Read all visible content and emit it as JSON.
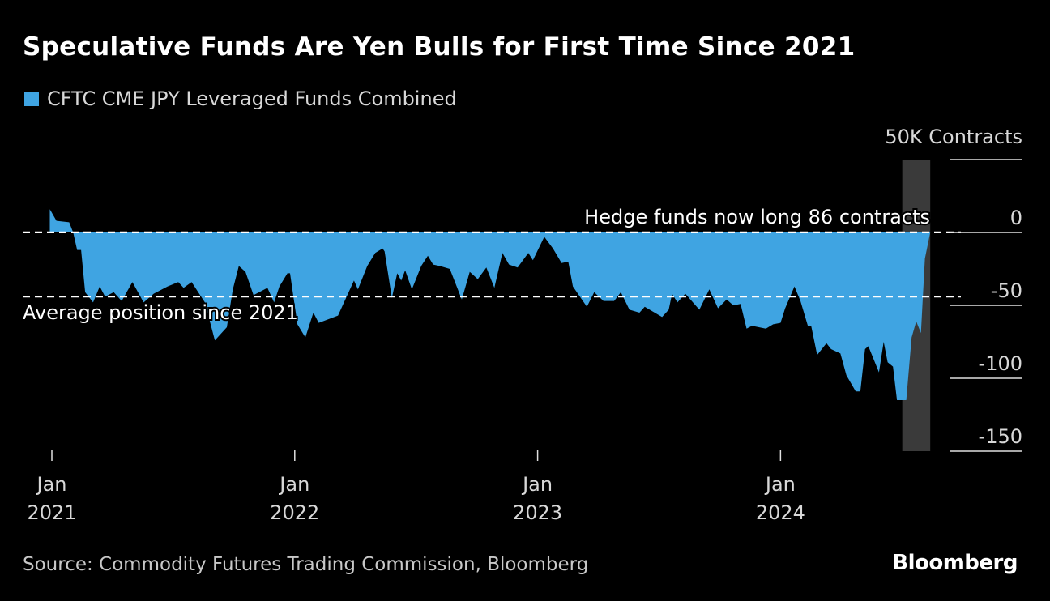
{
  "title": "Speculative Funds Are Yen Bulls for First Time Since 2021",
  "source": "Source: Commodity Futures Trading Commission, Bloomberg",
  "logo": "Bloomberg",
  "colors": {
    "series": "#3fa4e2",
    "highlight_band": "#3a3a3a",
    "background": "#000000"
  },
  "chart_data": {
    "type": "area",
    "title": "Speculative Funds Are Yen Bulls for First Time Since 2021",
    "ylabel": "50K Contracts",
    "ylim": [
      -150,
      50
    ],
    "yticks": [
      {
        "value": 50,
        "label": ""
      },
      {
        "value": 0,
        "label": "0"
      },
      {
        "value": -50,
        "label": "-50"
      },
      {
        "value": -100,
        "label": "-100"
      },
      {
        "value": -150,
        "label": "-150"
      }
    ],
    "xticks": [
      {
        "date": "2021-01-01",
        "month": "Jan",
        "year": "2021"
      },
      {
        "date": "2022-01-01",
        "month": "Jan",
        "year": "2022"
      },
      {
        "date": "2023-01-01",
        "month": "Jan",
        "year": "2023"
      },
      {
        "date": "2024-01-01",
        "month": "Jan",
        "year": "2024"
      }
    ],
    "grid": false,
    "legend": {
      "position": "top-left",
      "entries": [
        "CFTC CME JPY Leveraged Funds Combined"
      ]
    },
    "highlight_band": {
      "start": "2024-07-02",
      "end": "2024-08-13"
    },
    "reference_lines": [
      {
        "value": 0.086,
        "label": "Hedge funds now long 86 contracts"
      },
      {
        "value": -44,
        "label": "Average position since 2021"
      }
    ],
    "series": [
      {
        "name": "CFTC CME JPY Leveraged Funds Combined",
        "points": [
          [
            "2020-12-29",
            16
          ],
          [
            "2021-01-08",
            8
          ],
          [
            "2021-01-27",
            7
          ],
          [
            "2021-02-02",
            0
          ],
          [
            "2021-02-08",
            -12
          ],
          [
            "2021-02-14",
            -12
          ],
          [
            "2021-02-20",
            -41
          ],
          [
            "2021-03-04",
            -48
          ],
          [
            "2021-03-14",
            -37
          ],
          [
            "2021-03-22",
            -44
          ],
          [
            "2021-04-04",
            -41
          ],
          [
            "2021-04-16",
            -47
          ],
          [
            "2021-05-02",
            -34
          ],
          [
            "2021-05-19",
            -48
          ],
          [
            "2021-06-03",
            -42
          ],
          [
            "2021-06-24",
            -37
          ],
          [
            "2021-07-10",
            -34
          ],
          [
            "2021-07-18",
            -38
          ],
          [
            "2021-07-30",
            -34
          ],
          [
            "2021-08-19",
            -48
          ],
          [
            "2021-09-03",
            -74
          ],
          [
            "2021-09-21",
            -65
          ],
          [
            "2021-09-30",
            -39
          ],
          [
            "2021-10-09",
            -23
          ],
          [
            "2021-10-19",
            -27
          ],
          [
            "2021-10-31",
            -43
          ],
          [
            "2021-11-21",
            -38
          ],
          [
            "2021-12-01",
            -48
          ],
          [
            "2021-12-09",
            -37
          ],
          [
            "2021-12-21",
            -28
          ],
          [
            "2021-12-25",
            -28
          ],
          [
            "2022-01-05",
            -63
          ],
          [
            "2022-01-17",
            -72
          ],
          [
            "2022-01-29",
            -55
          ],
          [
            "2022-02-06",
            -62
          ],
          [
            "2022-03-07",
            -57
          ],
          [
            "2022-03-31",
            -33
          ],
          [
            "2022-04-06",
            -39
          ],
          [
            "2022-04-20",
            -23
          ],
          [
            "2022-05-02",
            -14
          ],
          [
            "2022-05-13",
            -11
          ],
          [
            "2022-05-16",
            -13
          ],
          [
            "2022-05-27",
            -45
          ],
          [
            "2022-06-04",
            -28
          ],
          [
            "2022-06-10",
            -33
          ],
          [
            "2022-06-16",
            -26
          ],
          [
            "2022-06-26",
            -39
          ],
          [
            "2022-07-10",
            -23
          ],
          [
            "2022-07-20",
            -16
          ],
          [
            "2022-07-28",
            -22
          ],
          [
            "2022-08-07",
            -23
          ],
          [
            "2022-08-22",
            -25
          ],
          [
            "2022-09-09",
            -46
          ],
          [
            "2022-09-21",
            -27
          ],
          [
            "2022-10-03",
            -32
          ],
          [
            "2022-10-16",
            -24
          ],
          [
            "2022-10-28",
            -38
          ],
          [
            "2022-11-09",
            -14
          ],
          [
            "2022-11-19",
            -22
          ],
          [
            "2022-12-02",
            -24
          ],
          [
            "2022-12-18",
            -14
          ],
          [
            "2022-12-25",
            -19
          ],
          [
            "2023-01-11",
            -3
          ],
          [
            "2023-01-24",
            -11
          ],
          [
            "2023-02-06",
            -21
          ],
          [
            "2023-02-16",
            -20
          ],
          [
            "2023-02-23",
            -37
          ],
          [
            "2023-03-16",
            -51
          ],
          [
            "2023-03-27",
            -41
          ],
          [
            "2023-04-10",
            -47
          ],
          [
            "2023-04-26",
            -47
          ],
          [
            "2023-05-06",
            -41
          ],
          [
            "2023-05-19",
            -53
          ],
          [
            "2023-06-03",
            -55
          ],
          [
            "2023-06-11",
            -51
          ],
          [
            "2023-07-07",
            -58
          ],
          [
            "2023-07-17",
            -53
          ],
          [
            "2023-07-22",
            -42
          ],
          [
            "2023-07-30",
            -48
          ],
          [
            "2023-08-11",
            -42
          ],
          [
            "2023-09-01",
            -53
          ],
          [
            "2023-09-16",
            -39
          ],
          [
            "2023-09-29",
            -52
          ],
          [
            "2023-10-12",
            -46
          ],
          [
            "2023-10-22",
            -50
          ],
          [
            "2023-11-02",
            -49
          ],
          [
            "2023-11-11",
            -66
          ],
          [
            "2023-11-19",
            -64
          ],
          [
            "2023-12-10",
            -66
          ],
          [
            "2023-12-21",
            -63
          ],
          [
            "2024-01-01",
            -62
          ],
          [
            "2024-01-08",
            -52
          ],
          [
            "2024-01-22",
            -37
          ],
          [
            "2024-01-31",
            -47
          ],
          [
            "2024-02-11",
            -64
          ],
          [
            "2024-02-16",
            -64
          ],
          [
            "2024-02-25",
            -84
          ],
          [
            "2024-03-10",
            -76
          ],
          [
            "2024-03-17",
            -80
          ],
          [
            "2024-03-31",
            -83
          ],
          [
            "2024-04-09",
            -98
          ],
          [
            "2024-04-23",
            -109
          ],
          [
            "2024-04-30",
            -109
          ],
          [
            "2024-05-07",
            -80
          ],
          [
            "2024-05-12",
            -78
          ],
          [
            "2024-05-28",
            -96
          ],
          [
            "2024-06-04",
            -75
          ],
          [
            "2024-06-10",
            -89
          ],
          [
            "2024-06-18",
            -92
          ],
          [
            "2024-06-24",
            -115
          ],
          [
            "2024-07-08",
            -115
          ],
          [
            "2024-07-16",
            -72
          ],
          [
            "2024-07-23",
            -61
          ],
          [
            "2024-07-30",
            -69
          ],
          [
            "2024-08-05",
            -18
          ],
          [
            "2024-08-13",
            0.086
          ]
        ]
      }
    ]
  }
}
